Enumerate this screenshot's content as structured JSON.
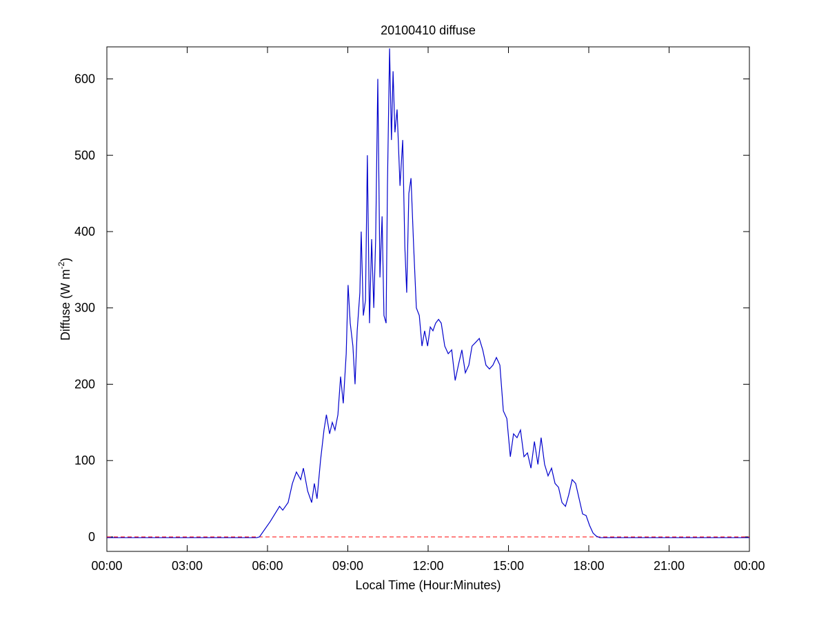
{
  "chart_data": {
    "type": "line",
    "title": "20100410 diffuse",
    "x_label": "Local Time (Hour:Minutes)",
    "y_label": {
      "text": "Diffuse (W m",
      "superscript": "-2",
      "suffix": ")"
    },
    "xlim": [
      0,
      24
    ],
    "xticks": [
      {
        "value": 0,
        "label": "00:00"
      },
      {
        "value": 3,
        "label": "03:00"
      },
      {
        "value": 6,
        "label": "06:00"
      },
      {
        "value": 9,
        "label": "09:00"
      },
      {
        "value": 12,
        "label": "12:00"
      },
      {
        "value": 15,
        "label": "15:00"
      },
      {
        "value": 18,
        "label": "18:00"
      },
      {
        "value": 21,
        "label": "21:00"
      },
      {
        "value": 24,
        "label": "00:00"
      }
    ],
    "ylim": [
      -19,
      642
    ],
    "yticks": [
      0,
      100,
      200,
      300,
      400,
      500,
      600
    ],
    "grid": false,
    "hline": {
      "value": 0,
      "color": "#ff0000"
    },
    "x": [
      0,
      3,
      5.6,
      5.7,
      6.1,
      6.45,
      6.57,
      6.77,
      6.93,
      7.08,
      7.24,
      7.34,
      7.5,
      7.65,
      7.75,
      7.85,
      7.98,
      8.11,
      8.2,
      8.32,
      8.42,
      8.52,
      8.63,
      8.73,
      8.83,
      8.94,
      9.01,
      9.09,
      9.19,
      9.27,
      9.35,
      9.45,
      9.5,
      9.58,
      9.66,
      9.73,
      9.81,
      9.89,
      9.97,
      10.04,
      10.12,
      10.2,
      10.28,
      10.35,
      10.43,
      10.48,
      10.56,
      10.63,
      10.69,
      10.76,
      10.84,
      10.95,
      11.05,
      11.13,
      11.2,
      11.28,
      11.36,
      11.46,
      11.56,
      11.67,
      11.77,
      11.87,
      11.98,
      12.08,
      12.18,
      12.28,
      12.39,
      12.49,
      12.62,
      12.75,
      12.88,
      13.01,
      13.13,
      13.26,
      13.39,
      13.52,
      13.64,
      13.78,
      13.91,
      14.04,
      14.16,
      14.29,
      14.42,
      14.55,
      14.68,
      14.81,
      14.94,
      15.07,
      15.19,
      15.32,
      15.45,
      15.58,
      15.71,
      15.84,
      15.97,
      16.1,
      16.22,
      16.35,
      16.48,
      16.61,
      16.74,
      16.87,
      17.0,
      17.13,
      17.25,
      17.38,
      17.51,
      17.64,
      17.77,
      17.9,
      18.03,
      18.16,
      18.28,
      18.41,
      24
    ],
    "series": [
      {
        "name": "diffuse",
        "color": "#0000cc",
        "values": [
          -1,
          -1,
          -1,
          0,
          20,
          40,
          35,
          45,
          70,
          85,
          75,
          90,
          60,
          45,
          70,
          50,
          100,
          140,
          160,
          135,
          150,
          140,
          160,
          210,
          175,
          240,
          330,
          280,
          250,
          200,
          270,
          320,
          400,
          290,
          310,
          500,
          280,
          390,
          300,
          390,
          600,
          340,
          420,
          290,
          280,
          460,
          640,
          520,
          610,
          530,
          560,
          460,
          520,
          380,
          320,
          450,
          470,
          380,
          300,
          290,
          250,
          270,
          250,
          275,
          270,
          280,
          285,
          280,
          250,
          240,
          245,
          205,
          225,
          245,
          215,
          225,
          250,
          255,
          260,
          245,
          225,
          220,
          225,
          235,
          225,
          165,
          155,
          105,
          135,
          130,
          140,
          105,
          110,
          90,
          125,
          95,
          130,
          95,
          80,
          90,
          70,
          65,
          45,
          40,
          55,
          75,
          70,
          50,
          30,
          28,
          15,
          5,
          1,
          -1,
          -1
        ]
      }
    ]
  }
}
